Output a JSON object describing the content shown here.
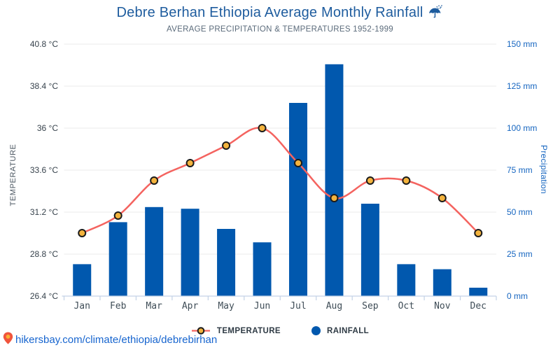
{
  "page": {
    "footer_link": "hikersbay.com/climate/ethiopia/debrebirhan"
  },
  "legend": {
    "temperature_label": "TEMPERATURE",
    "rainfall_label": "RAINFALL"
  },
  "axes": {
    "left_title": "TEMPERATURE",
    "right_title": "Precipitation",
    "left_ticks": [
      "26.4 °C",
      "28.8 °C",
      "31.2 °C",
      "33.6 °C",
      "36 °C",
      "38.4 °C",
      "40.8 °C"
    ],
    "right_ticks": [
      "0 mm",
      "25 mm",
      "50 mm",
      "75 mm",
      "100 mm",
      "125 mm",
      "150 mm"
    ]
  },
  "colors": {
    "title_blue": "#1e5c9e",
    "subtitle_gray": "#5b6b7b",
    "bar_blue": "#0158ae",
    "line_red": "#f4635f",
    "dot_fill": "#f3b33d",
    "dot_stroke": "#1b1b1b",
    "left_axis_text": "#37424c",
    "right_axis_text": "#1565c0",
    "month_text": "#3f4d57",
    "gridline": "#ebebeb",
    "axis_line": "#c3d2e6",
    "legend_text": "#2e3a44",
    "footer_link": "#1765cf",
    "pin_red": "#f0543c",
    "pin_yellow": "#f9b233"
  },
  "chart_data": {
    "type": "bar",
    "title": "Debre Berhan Ethiopia Average Monthly Rainfall",
    "subtitle": "AVERAGE PRECIPITATION & TEMPERATURES 1952-1999",
    "categories": [
      "Jan",
      "Feb",
      "Mar",
      "Apr",
      "May",
      "Jun",
      "Jul",
      "Aug",
      "Sep",
      "Oct",
      "Nov",
      "Dec"
    ],
    "series": [
      {
        "name": "RAINFALL",
        "type": "bar",
        "axis": "right",
        "unit": "mm",
        "values": [
          19,
          44,
          53,
          52,
          40,
          32,
          115,
          138,
          55,
          19,
          16,
          5
        ]
      },
      {
        "name": "TEMPERATURE",
        "type": "line",
        "axis": "left",
        "unit": "°C",
        "values": [
          30,
          31,
          33,
          34,
          35,
          36,
          34,
          32,
          33,
          33,
          32,
          30
        ]
      }
    ],
    "left_axis": {
      "label": "TEMPERATURE",
      "range": [
        26.4,
        40.8
      ],
      "ticks": [
        26.4,
        28.8,
        31.2,
        33.6,
        36,
        38.4,
        40.8
      ]
    },
    "right_axis": {
      "label": "Precipitation",
      "range": [
        0,
        150
      ],
      "ticks": [
        0,
        25,
        50,
        75,
        100,
        125,
        150
      ]
    },
    "grid": true,
    "legend_position": "bottom"
  }
}
